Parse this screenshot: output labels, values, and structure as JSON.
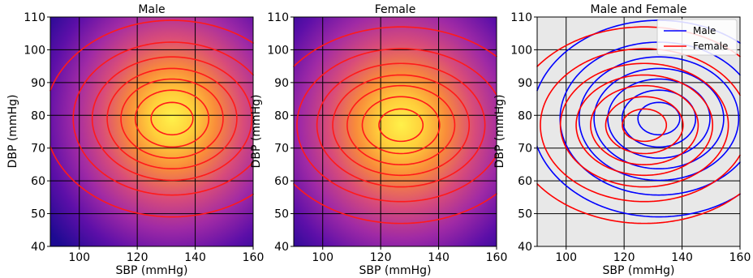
{
  "chart_data": [
    {
      "type": "heatmap",
      "title": "Male",
      "xlabel": "SBP (mmHg)",
      "ylabel": "DBP (mmHg)",
      "xlim": [
        90,
        160
      ],
      "ylim": [
        40,
        110
      ],
      "xticks": [
        100,
        120,
        140,
        160
      ],
      "yticks": [
        40,
        50,
        60,
        70,
        80,
        90,
        100,
        110
      ],
      "grid": true,
      "peak": {
        "x": 132,
        "y": 79
      },
      "spread": {
        "x": 19,
        "y": 13
      },
      "contour_color": "#ff1a1a",
      "contour_levels": [
        0.07,
        0.2,
        0.35,
        0.5,
        0.65,
        0.8,
        0.93
      ]
    },
    {
      "type": "heatmap",
      "title": "Female",
      "xlabel": "SBP (mmHg)",
      "ylabel": "DBP (mmHg)",
      "xlim": [
        90,
        160
      ],
      "ylim": [
        40,
        110
      ],
      "xticks": [
        100,
        120,
        140,
        160
      ],
      "yticks": [
        40,
        50,
        60,
        70,
        80,
        90,
        100,
        110
      ],
      "grid": true,
      "peak": {
        "x": 127,
        "y": 77
      },
      "spread": {
        "x": 20,
        "y": 13
      },
      "contour_color": "#ff1a1a",
      "contour_levels": [
        0.07,
        0.2,
        0.35,
        0.5,
        0.65,
        0.8,
        0.93
      ]
    },
    {
      "type": "line",
      "title": "Male and Female",
      "xlabel": "SBP (mmHg)",
      "ylabel": "DBP (mmHg)",
      "xlim": [
        90,
        160
      ],
      "ylim": [
        40,
        110
      ],
      "xticks": [
        100,
        120,
        140,
        160
      ],
      "yticks": [
        40,
        50,
        60,
        70,
        80,
        90,
        100,
        110
      ],
      "grid": true,
      "background": "#e8e8e8",
      "legend_position": "top-right",
      "series": [
        {
          "name": "Male",
          "color": "#0000ff",
          "peak": {
            "x": 132,
            "y": 79
          },
          "spread": {
            "x": 19,
            "y": 13
          }
        },
        {
          "name": "Female",
          "color": "#ff0000",
          "peak": {
            "x": 127,
            "y": 77
          },
          "spread": {
            "x": 20,
            "y": 13
          }
        }
      ],
      "contour_levels": [
        0.07,
        0.2,
        0.35,
        0.5,
        0.65,
        0.8,
        0.93
      ]
    }
  ]
}
